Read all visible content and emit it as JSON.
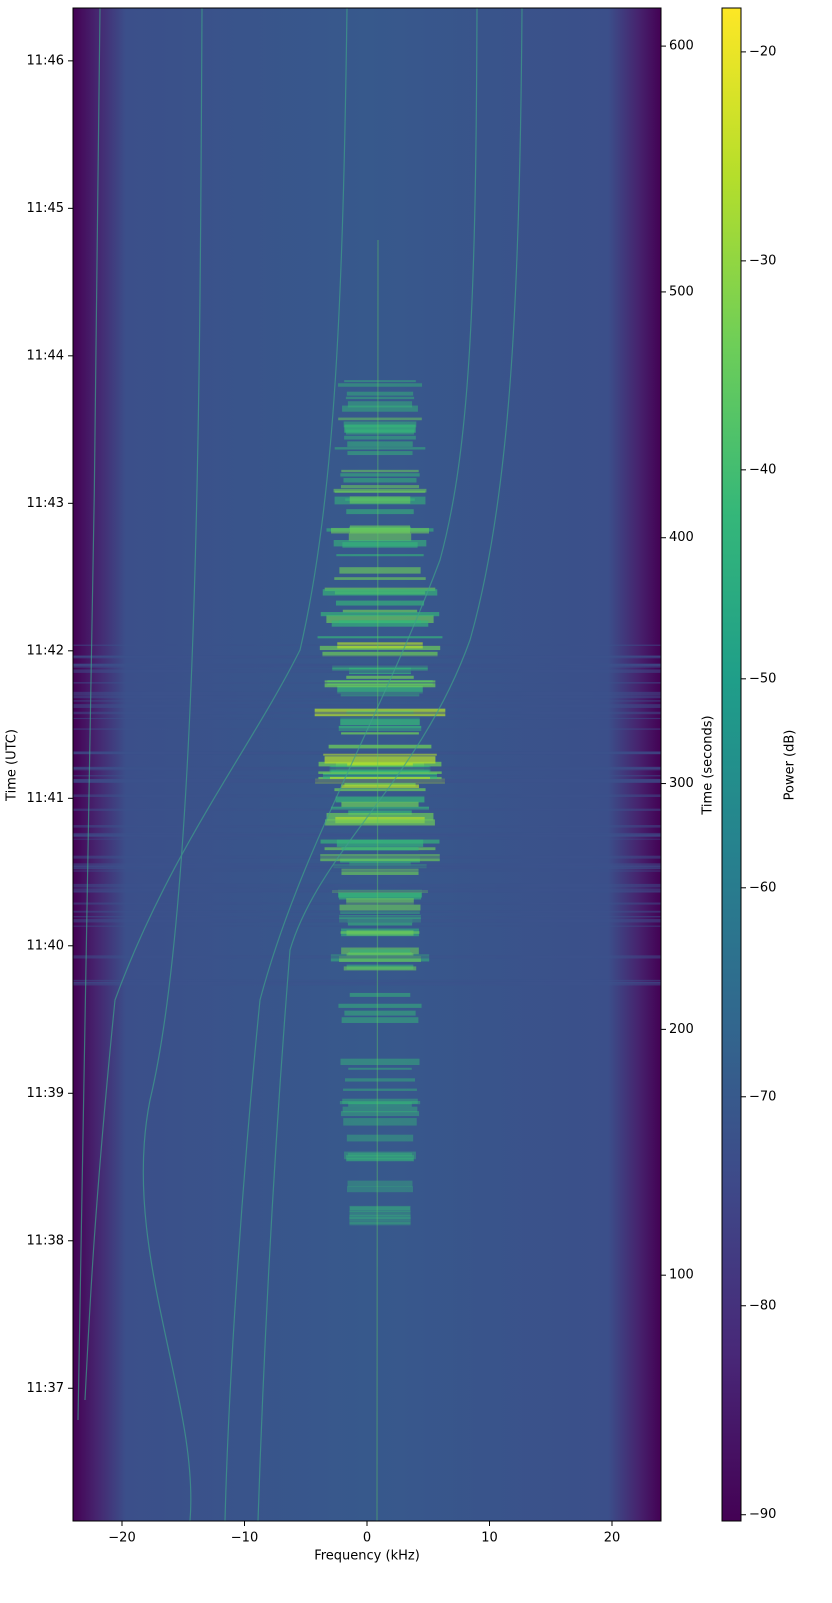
{
  "chart_data": {
    "type": "spectrogram",
    "x_label": "Frequency (kHz)",
    "y_label": "Time (UTC)",
    "y2_label": "Time (seconds)",
    "colorbar_label": "Power (dB)",
    "colormap": "viridis",
    "xlim": [
      -24,
      24
    ],
    "xticks": [
      {
        "value": -20,
        "label": "−20"
      },
      {
        "value": -10,
        "label": "−10"
      },
      0,
      10,
      20
    ],
    "ylim": [
      0,
      615.5
    ],
    "yticks": [
      {
        "value": 54,
        "label": "11:37"
      },
      {
        "value": 114,
        "label": "11:38"
      },
      {
        "value": 174,
        "label": "11:39"
      },
      {
        "value": 234,
        "label": "11:40"
      },
      {
        "value": 294,
        "label": "11:41"
      },
      {
        "value": 354,
        "label": "11:42"
      },
      {
        "value": 414,
        "label": "11:43"
      },
      {
        "value": 474,
        "label": "11:44"
      },
      {
        "value": 534,
        "label": "11:45"
      },
      {
        "value": 594,
        "label": "11:46"
      }
    ],
    "y2lim": [
      0,
      615.5
    ],
    "y2ticks": [
      100,
      200,
      300,
      400,
      500,
      600
    ],
    "clim": [
      -90.3,
      -17.9
    ],
    "cticks": [
      {
        "value": -90,
        "label": "−90"
      },
      {
        "value": -80,
        "label": "−80"
      },
      {
        "value": -70,
        "label": "−70"
      },
      {
        "value": -60,
        "label": "−60"
      },
      {
        "value": -50,
        "label": "−50"
      },
      {
        "value": -40,
        "label": "−40"
      },
      {
        "value": -30,
        "label": "−30"
      },
      {
        "value": -20,
        "label": "−20"
      }
    ]
  }
}
